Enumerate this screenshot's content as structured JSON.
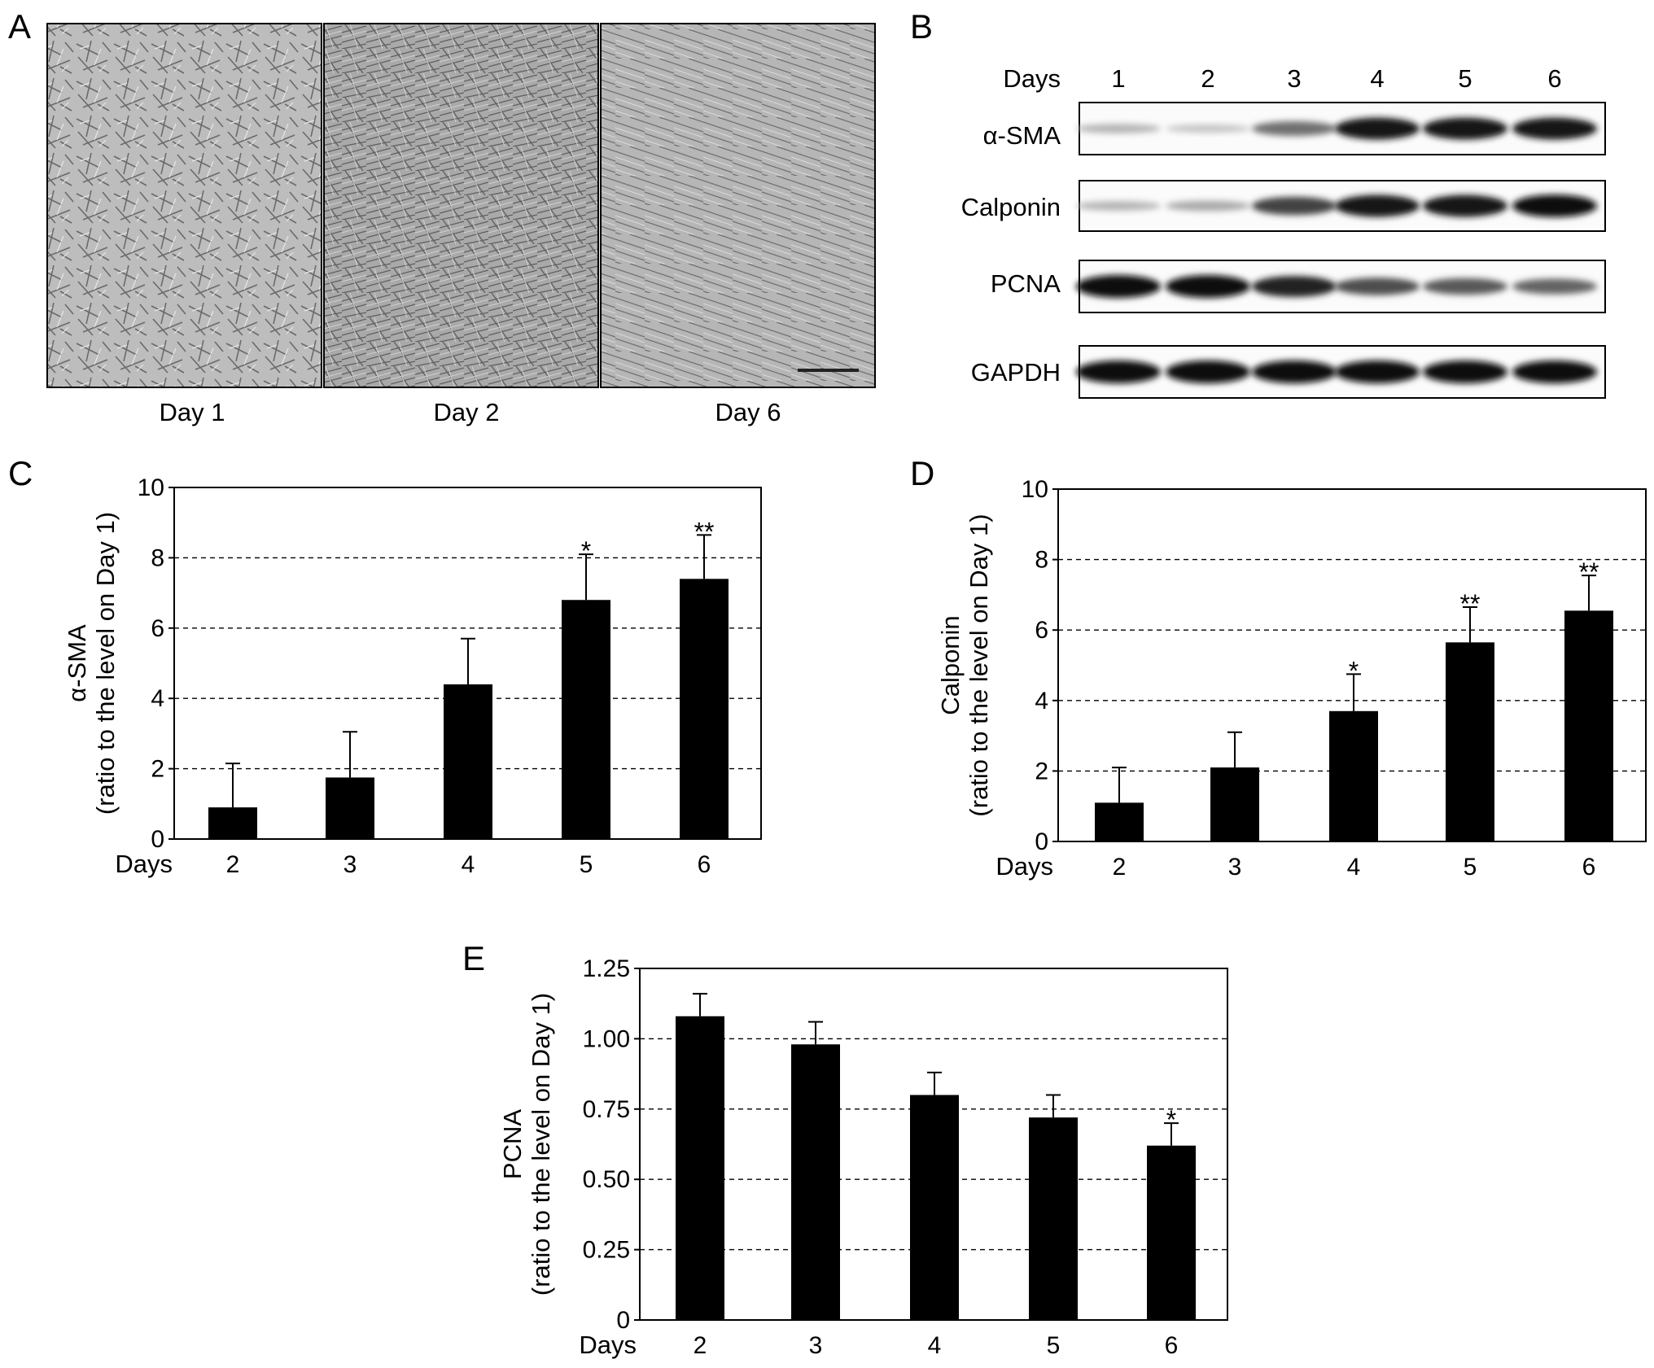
{
  "panel_a": {
    "letter": "A",
    "captions": [
      "Day 1",
      "Day 2",
      "Day 6"
    ]
  },
  "panel_b": {
    "letter": "B",
    "days_label": "Days",
    "days": [
      "1",
      "2",
      "3",
      "4",
      "5",
      "6"
    ],
    "rows": [
      {
        "label": "α-SMA",
        "intensities": [
          0.25,
          0.18,
          0.55,
          0.95,
          0.95,
          0.95
        ]
      },
      {
        "label": "Calponin",
        "intensities": [
          0.25,
          0.3,
          0.75,
          0.95,
          0.95,
          0.98
        ]
      },
      {
        "label": "PCNA",
        "intensities": [
          1.0,
          1.0,
          0.9,
          0.7,
          0.65,
          0.6
        ]
      },
      {
        "label": "GAPDH",
        "intensities": [
          1.0,
          1.0,
          1.0,
          1.0,
          1.0,
          1.0
        ]
      }
    ]
  },
  "chart_data": [
    {
      "letter": "C",
      "type": "bar",
      "xlabel": "Days",
      "ylabel_line1": "α-SMA",
      "ylabel_line2": "(ratio to the level on Day 1)",
      "categories": [
        "2",
        "3",
        "4",
        "5",
        "6"
      ],
      "values": [
        0.9,
        1.75,
        4.4,
        6.8,
        7.4
      ],
      "errors": [
        1.25,
        1.3,
        1.3,
        1.3,
        1.25
      ],
      "significance": [
        "",
        "",
        "",
        "*",
        "**"
      ],
      "ylim": [
        0,
        10
      ],
      "yticks": [
        "0",
        "2",
        "4",
        "6",
        "8",
        "10"
      ],
      "ytick_values": [
        0,
        2,
        4,
        6,
        8,
        10
      ],
      "grid": true
    },
    {
      "letter": "D",
      "type": "bar",
      "xlabel": "Days",
      "ylabel_line1": "Calponin",
      "ylabel_line2": "(ratio to the level on Day 1)",
      "categories": [
        "2",
        "3",
        "4",
        "5",
        "6"
      ],
      "values": [
        1.1,
        2.1,
        3.7,
        5.65,
        6.55
      ],
      "errors": [
        1.0,
        1.0,
        1.05,
        1.0,
        1.0
      ],
      "significance": [
        "",
        "",
        "*",
        "**",
        "**"
      ],
      "ylim": [
        0,
        10
      ],
      "yticks": [
        "0",
        "2",
        "4",
        "6",
        "8",
        "10"
      ],
      "ytick_values": [
        0,
        2,
        4,
        6,
        8,
        10
      ],
      "grid": true
    },
    {
      "letter": "E",
      "type": "bar",
      "xlabel": "Days",
      "ylabel_line1": "PCNA",
      "ylabel_line2": "(ratio to the level on Day 1)",
      "categories": [
        "2",
        "3",
        "4",
        "5",
        "6"
      ],
      "values": [
        1.08,
        0.98,
        0.8,
        0.72,
        0.62
      ],
      "errors": [
        0.08,
        0.08,
        0.08,
        0.08,
        0.08
      ],
      "significance": [
        "",
        "",
        "",
        "",
        "*"
      ],
      "ylim": [
        0,
        1.25
      ],
      "yticks": [
        "0",
        "0.25",
        "0.50",
        "0.75",
        "1.00",
        "1.25"
      ],
      "ytick_values": [
        0,
        0.25,
        0.5,
        0.75,
        1.0,
        1.25
      ],
      "grid": true
    }
  ]
}
